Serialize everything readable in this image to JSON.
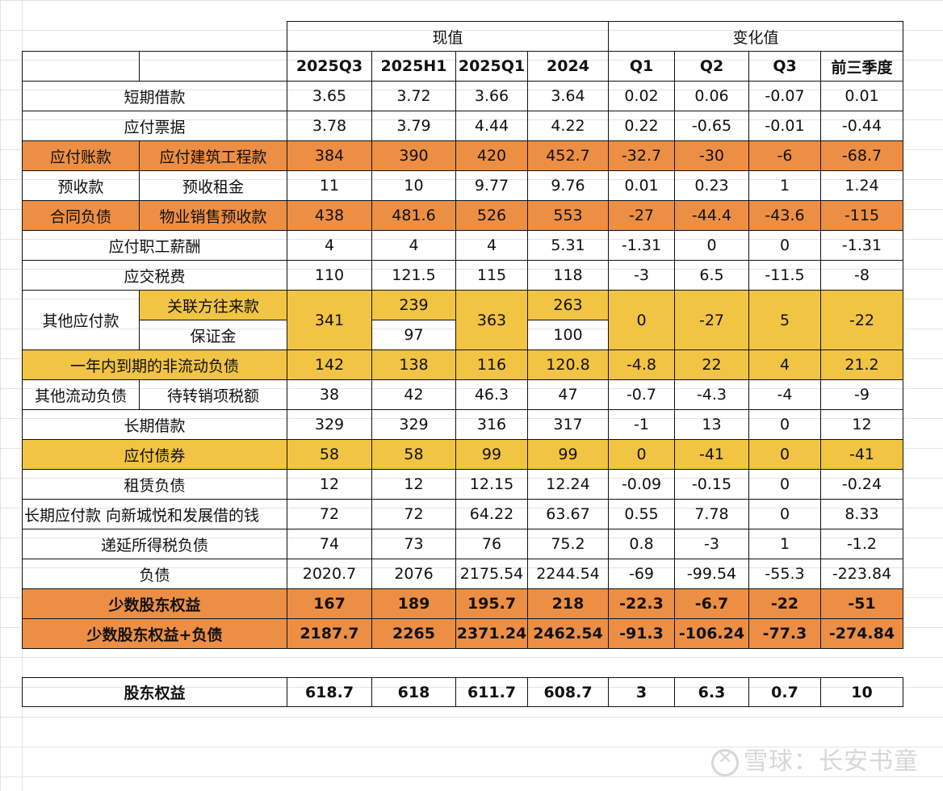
{
  "header": {
    "group_current": "现值",
    "group_change": "变化值",
    "cols": [
      "2025Q3",
      "2025H1",
      "2025Q1",
      "2024",
      "Q1",
      "Q2",
      "Q3",
      "前三季度"
    ]
  },
  "rows": {
    "short_loan": {
      "label": "短期借款",
      "v": [
        "3.65",
        "3.72",
        "3.66",
        "3.64",
        "0.02",
        "0.06",
        "-0.07",
        "0.01"
      ]
    },
    "notes_payable": {
      "label": "应付票据",
      "v": [
        "3.78",
        "3.79",
        "4.44",
        "4.22",
        "0.22",
        "-0.65",
        "-0.01",
        "-0.44"
      ]
    },
    "accounts_payable": {
      "label": "应付账款",
      "sub": "应付建筑工程款",
      "v": [
        "384",
        "390",
        "420",
        "452.7",
        "-32.7",
        "-30",
        "-6",
        "-68.7"
      ]
    },
    "advance": {
      "label": "预收款",
      "sub": "预收租金",
      "v": [
        "11",
        "10",
        "9.77",
        "9.76",
        "0.01",
        "0.23",
        "1",
        "1.24"
      ]
    },
    "contract": {
      "label": "合同负债",
      "sub": "物业销售预收款",
      "v": [
        "438",
        "481.6",
        "526",
        "553",
        "-27",
        "-44.4",
        "-43.6",
        "-115"
      ]
    },
    "salary": {
      "label": "应付职工薪酬",
      "v": [
        "4",
        "4",
        "4",
        "5.31",
        "-1.31",
        "0",
        "0",
        "-1.31"
      ]
    },
    "tax": {
      "label": "应交税费",
      "v": [
        "110",
        "121.5",
        "115",
        "118",
        "-3",
        "6.5",
        "-11.5",
        "-8"
      ]
    },
    "other_payable": {
      "label": "其他应付款",
      "sub1": "关联方往来款",
      "sub2": "保证金",
      "q3": "341",
      "h1a": "239",
      "h1b": "97",
      "q1": "363",
      "y24a": "263",
      "y24b": "100",
      "chg": [
        "0",
        "-27",
        "5",
        "-22"
      ]
    },
    "noncurrent_due": {
      "label": "一年内到期的非流动负债",
      "v": [
        "142",
        "138",
        "116",
        "120.8",
        "-4.8",
        "22",
        "4",
        "21.2"
      ]
    },
    "other_current": {
      "label": "其他流动负债",
      "sub": "待转销项税额",
      "v": [
        "38",
        "42",
        "46.3",
        "47",
        "-0.7",
        "-4.3",
        "-4",
        "-9"
      ]
    },
    "long_loan": {
      "label": "长期借款",
      "v": [
        "329",
        "329",
        "316",
        "317",
        "-1",
        "13",
        "0",
        "12"
      ]
    },
    "bonds": {
      "label": "应付债券",
      "v": [
        "58",
        "58",
        "99",
        "99",
        "0",
        "-41",
        "0",
        "-41"
      ]
    },
    "lease": {
      "label": "租赁负债",
      "v": [
        "12",
        "12",
        "12.15",
        "12.24",
        "-0.09",
        "-0.15",
        "0",
        "-0.24"
      ]
    },
    "lt_payable": {
      "label": "长期应付款 向新城悦和发展借的钱",
      "v": [
        "72",
        "72",
        "64.22",
        "63.67",
        "0.55",
        "7.78",
        "0",
        "8.33"
      ]
    },
    "deferred_tax": {
      "label": "递延所得税负债",
      "v": [
        "74",
        "73",
        "76",
        "75.2",
        "0.8",
        "-3",
        "1",
        "-1.2"
      ]
    },
    "liabilities": {
      "label": "负债",
      "v": [
        "2020.7",
        "2076",
        "2175.54",
        "2244.54",
        "-69",
        "-99.54",
        "-55.3",
        "-223.84"
      ]
    },
    "minority": {
      "label": "少数股东权益",
      "v": [
        "167",
        "189",
        "195.7",
        "218",
        "-22.3",
        "-6.7",
        "-22",
        "-51"
      ]
    },
    "minority_plus": {
      "label": "少数股东权益+负债",
      "v": [
        "2187.7",
        "2265",
        "2371.24",
        "2462.54",
        "-91.3",
        "-106.24",
        "-77.3",
        "-274.84"
      ]
    },
    "equity": {
      "label": "股东权益",
      "v": [
        "618.7",
        "618",
        "611.7",
        "608.7",
        "3",
        "6.3",
        "0.7",
        "10"
      ]
    }
  },
  "watermark": "雪球：长安书童",
  "colors": {
    "orange": "#ec8f44",
    "yellow": "#f1c443"
  }
}
